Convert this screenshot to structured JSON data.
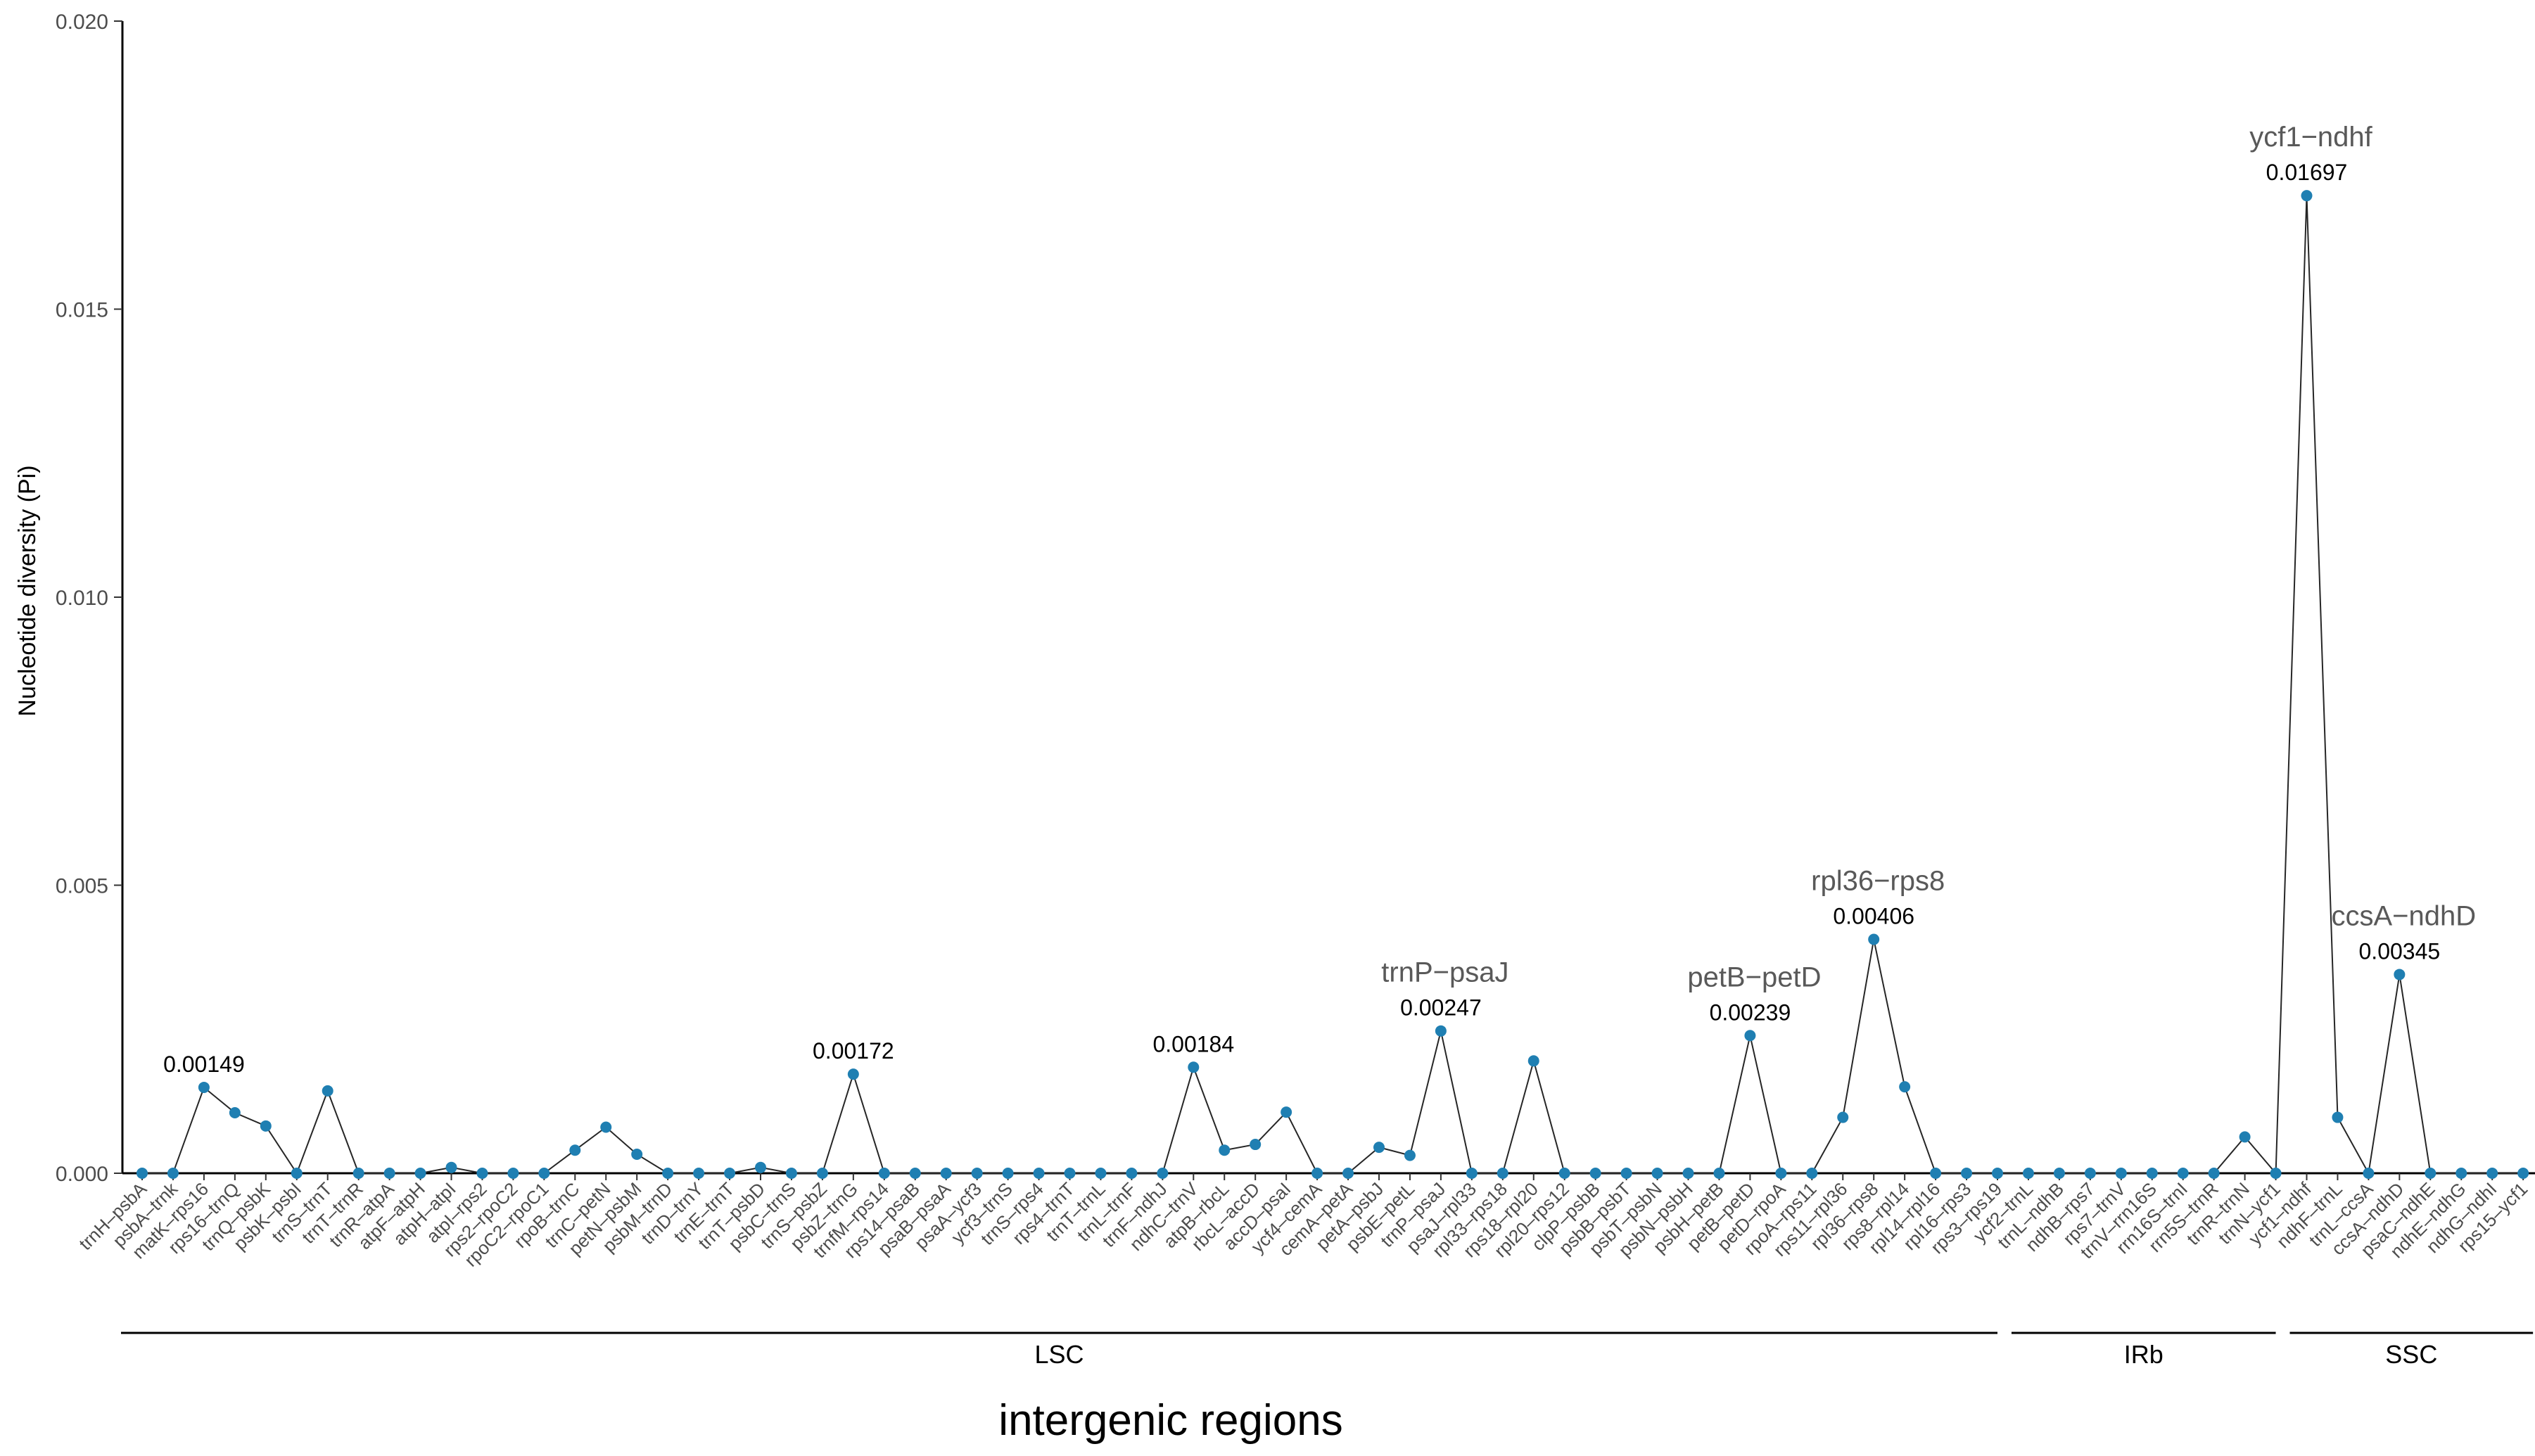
{
  "chart_data": {
    "type": "line",
    "title": "",
    "xlabel": "intergenic regions",
    "ylabel": "Nucleotide diversity (Pi)",
    "ylim": [
      0,
      0.02
    ],
    "yticks": [
      "0.000",
      "0.005",
      "0.010",
      "0.015",
      "0.020"
    ],
    "grid": false,
    "colors": {
      "point": "#1f7fb2",
      "line": "#262626",
      "axis": "#000000"
    },
    "categories": [
      "trnH–psbA",
      "psbA–trnk",
      "matK–rps16",
      "rps16–trnQ",
      "trnQ–psbK",
      "psbK–psbI",
      "trnS–trnT",
      "trnT–trnR",
      "trnR–atpA",
      "atpF–atpH",
      "atpH–atpI",
      "atpI–rps2",
      "rps2–rpoC2",
      "rpoC2–rpoC1",
      "rpoB–trnC",
      "trnC–petN",
      "petN–psbM",
      "psbM–trnD",
      "trnD–trnY",
      "trnE–trnT",
      "trnT–psbD",
      "psbC–trnS",
      "trnS–psbZ",
      "psbZ–trnG",
      "trnfM–rps14",
      "rps14–psaB",
      "psaB–psaA",
      "psaA–ycf3",
      "ycf3–trnS",
      "trnS–rps4",
      "rps4–trnT",
      "trnT–trnL",
      "trnL–trnF",
      "trnF–ndhJ",
      "ndhC–trnV",
      "atpB–rbcL",
      "rbcL–accD",
      "accD–psaI",
      "ycf4–cemA",
      "cemA–petA",
      "petA–psbJ",
      "psbE–petL",
      "trnP–psaJ",
      "psaJ–rpl33",
      "rpl33–rps18",
      "rps18–rpl20",
      "rpl20–rps12",
      "clpP–psbB",
      "psbB–psbT",
      "psbT–psbN",
      "psbN–psbH",
      "psbH–petB",
      "petB–petD",
      "petD–rpoA",
      "rpoA–rps11",
      "rps11–rpl36",
      "rpl36–rps8",
      "rps8–rpl14",
      "rpl14–rpl16",
      "rpl16–rps3",
      "rps3–rps19",
      "ycf2–trnL",
      "trnL–ndhB",
      "ndhB–rps7",
      "rps7–trnV",
      "trnV–rrn16S",
      "rrn16S–trnI",
      "rrn5S–trnR",
      "trnR–trnN",
      "trnN–ycf1",
      "ycf1–ndhf",
      "ndhF–trnL",
      "trnL–ccsA",
      "ccsA–ndhD",
      "psaC–ndhE",
      "ndhE–ndhG",
      "ndhG–ndhI",
      "rps15–ycf1"
    ],
    "values": [
      0,
      0,
      0.00149,
      0.00105,
      0.00082,
      0,
      0.00143,
      0,
      0,
      0,
      0.0001,
      0,
      0,
      0,
      0.0004,
      0.0008,
      0.00033,
      0,
      0,
      0,
      0.0001,
      0,
      0,
      0.00172,
      0,
      0,
      0,
      0,
      0,
      0,
      0,
      0,
      0,
      0,
      0.00184,
      0.0004,
      0.0005,
      0.00106,
      0,
      0,
      0.00045,
      0.00031,
      0.00247,
      0,
      0,
      0.00195,
      0,
      0,
      0,
      0,
      0,
      0,
      0.00239,
      0,
      0,
      0.00097,
      0.00406,
      0.0015,
      0,
      0,
      0,
      0,
      0,
      0,
      0,
      0,
      0,
      0,
      0.00063,
      0,
      0.01697,
      0.00097,
      0,
      0.00345,
      0,
      0,
      0,
      0
    ],
    "value_labels": [
      {
        "category": "matK–rps16",
        "text": "0.00149"
      },
      {
        "category": "psbZ–trnG",
        "text": "0.00172"
      },
      {
        "category": "ndhC–trnV",
        "text": "0.00184"
      },
      {
        "category": "trnP–psaJ",
        "text": "0.00247"
      },
      {
        "category": "petB–petD",
        "text": "0.00239"
      },
      {
        "category": "rpl36–rps8",
        "text": "0.00406"
      },
      {
        "category": "ycf1–ndhf",
        "text": "0.01697"
      },
      {
        "category": "ccsA–ndhD",
        "text": "0.00345"
      }
    ],
    "name_labels": [
      {
        "category": "trnP–psaJ",
        "text": "trnP−psaJ"
      },
      {
        "category": "petB–petD",
        "text": "petB−petD"
      },
      {
        "category": "rpl36–rps8",
        "text": "rpl36−rps8"
      },
      {
        "category": "ycf1–ndhf",
        "text": "ycf1−ndhf"
      },
      {
        "category": "ccsA–ndhD",
        "text": "ccsA−ndhD"
      }
    ],
    "regions": [
      {
        "name": "LSC",
        "from": "trnH–psbA",
        "to": "rps3–rps19"
      },
      {
        "name": "IRb",
        "from": "ycf2–trnL",
        "to": "trnN–ycf1"
      },
      {
        "name": "SSC",
        "from": "ycf1–ndhf",
        "to": "rps15–ycf1"
      }
    ]
  }
}
